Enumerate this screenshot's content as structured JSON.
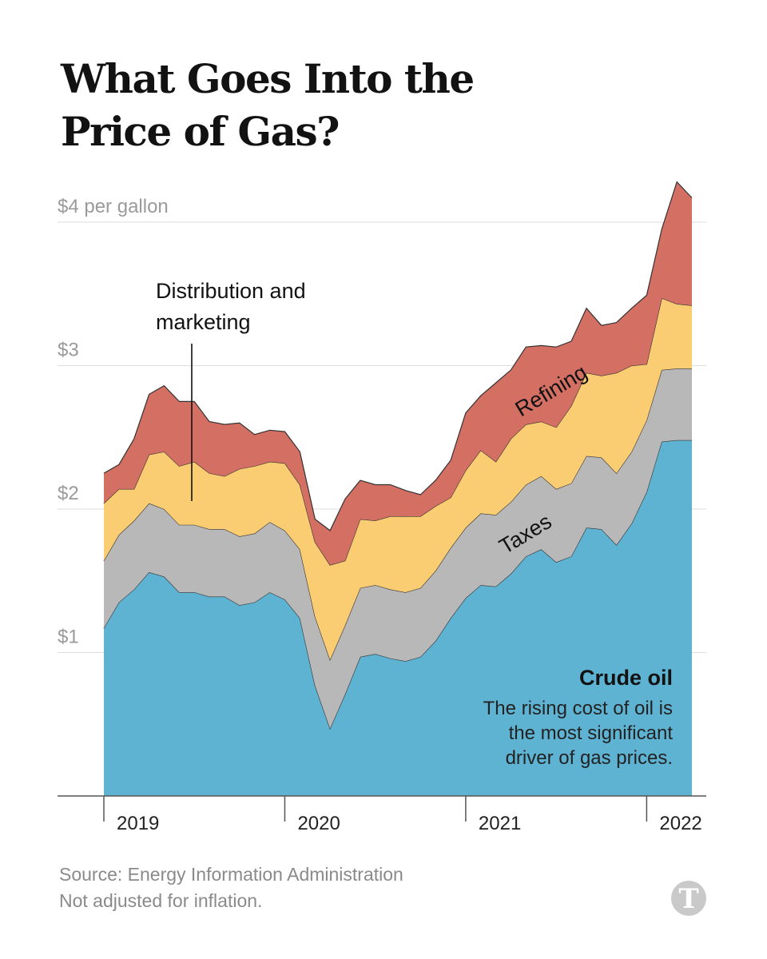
{
  "title": {
    "line1": "What Goes Into the",
    "line2": "Price of Gas?"
  },
  "footer": {
    "source": "Source: Energy Information Administration",
    "note": "Not adjusted for inflation."
  },
  "logo": {
    "icon": "nyt-t-logo-icon"
  },
  "chart_data": {
    "type": "area",
    "stacked": true,
    "title": "What Goes Into the Price of Gas?",
    "ylim": [
      0,
      4.3
    ],
    "y_ticks": [
      {
        "value": 1,
        "label": "$1"
      },
      {
        "value": 2,
        "label": "$2"
      },
      {
        "value": 3,
        "label": "$3"
      },
      {
        "value": 4,
        "label": "$4 per gallon"
      }
    ],
    "x_ticks": [
      {
        "value": 2019,
        "label": "2019"
      },
      {
        "value": 2020,
        "label": "2020"
      },
      {
        "value": 2021,
        "label": "2021"
      },
      {
        "value": 2022,
        "label": "2022"
      }
    ],
    "x": [
      2019.0,
      2019.083,
      2019.167,
      2019.25,
      2019.333,
      2019.417,
      2019.5,
      2019.583,
      2019.667,
      2019.75,
      2019.833,
      2019.917,
      2020.0,
      2020.083,
      2020.167,
      2020.25,
      2020.333,
      2020.417,
      2020.5,
      2020.583,
      2020.667,
      2020.75,
      2020.833,
      2020.917,
      2021.0,
      2021.083,
      2021.167,
      2021.25,
      2021.333,
      2021.417,
      2021.5,
      2021.583,
      2021.667,
      2021.75,
      2021.833,
      2021.917,
      2022.0,
      2022.083,
      2022.167,
      2022.25
    ],
    "series": [
      {
        "name": "Crude oil",
        "color": "#5fb3d2",
        "values": [
          1.17,
          1.35,
          1.44,
          1.56,
          1.53,
          1.42,
          1.42,
          1.39,
          1.39,
          1.33,
          1.35,
          1.42,
          1.37,
          1.24,
          0.77,
          0.47,
          0.71,
          0.97,
          0.99,
          0.96,
          0.94,
          0.97,
          1.08,
          1.24,
          1.38,
          1.47,
          1.46,
          1.55,
          1.67,
          1.72,
          1.63,
          1.67,
          1.87,
          1.86,
          1.75,
          1.9,
          2.12,
          2.47,
          2.48,
          2.48
        ]
      },
      {
        "name": "Taxes",
        "color": "#b8b8b8",
        "values": [
          0.47,
          0.47,
          0.48,
          0.48,
          0.47,
          0.47,
          0.47,
          0.47,
          0.47,
          0.48,
          0.48,
          0.49,
          0.48,
          0.48,
          0.48,
          0.48,
          0.48,
          0.48,
          0.48,
          0.48,
          0.48,
          0.48,
          0.49,
          0.49,
          0.49,
          0.5,
          0.5,
          0.5,
          0.5,
          0.51,
          0.51,
          0.51,
          0.5,
          0.5,
          0.5,
          0.5,
          0.5,
          0.5,
          0.5,
          0.5
        ]
      },
      {
        "name": "Distribution and marketing",
        "color": "#fbcd73",
        "values": [
          0.4,
          0.32,
          0.22,
          0.34,
          0.4,
          0.41,
          0.44,
          0.39,
          0.37,
          0.47,
          0.47,
          0.42,
          0.47,
          0.45,
          0.52,
          0.66,
          0.45,
          0.48,
          0.45,
          0.51,
          0.53,
          0.5,
          0.45,
          0.35,
          0.4,
          0.44,
          0.37,
          0.44,
          0.42,
          0.38,
          0.43,
          0.54,
          0.58,
          0.57,
          0.7,
          0.6,
          0.39,
          0.5,
          0.45,
          0.44
        ]
      },
      {
        "name": "Refining",
        "color": "#d46f64",
        "values": [
          0.21,
          0.17,
          0.35,
          0.42,
          0.46,
          0.45,
          0.42,
          0.36,
          0.36,
          0.32,
          0.22,
          0.22,
          0.22,
          0.23,
          0.16,
          0.24,
          0.43,
          0.27,
          0.25,
          0.22,
          0.18,
          0.15,
          0.18,
          0.26,
          0.4,
          0.38,
          0.55,
          0.48,
          0.54,
          0.53,
          0.56,
          0.45,
          0.45,
          0.35,
          0.35,
          0.4,
          0.48,
          0.48,
          0.85,
          0.75
        ]
      }
    ],
    "annotations": {
      "distribution": {
        "line1": "Distribution and",
        "line2": "marketing"
      },
      "refining": "Refining",
      "taxes": "Taxes",
      "crude_title": "Crude oil",
      "crude_desc": [
        "The rising cost of oil is",
        "the most significant",
        "driver of gas prices."
      ]
    }
  }
}
